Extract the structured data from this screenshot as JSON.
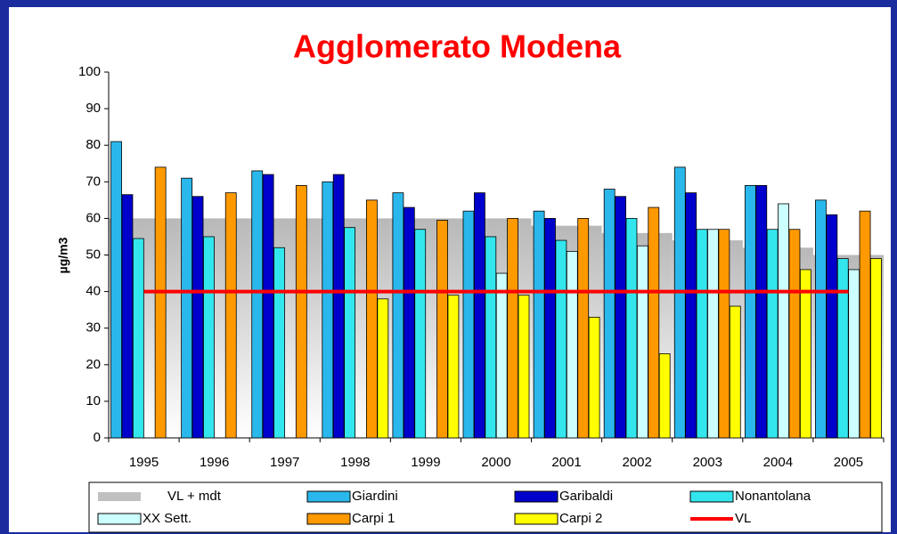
{
  "chart_data": {
    "type": "bar",
    "title": "Agglomerato Modena",
    "ylabel": "µg/m3",
    "categories": [
      "1995",
      "1996",
      "1997",
      "1998",
      "1999",
      "2000",
      "2001",
      "2002",
      "2003",
      "2004",
      "2005"
    ],
    "ylim": [
      0,
      100
    ],
    "yticks": [
      0,
      10,
      20,
      30,
      40,
      50,
      60,
      70,
      80,
      90,
      100
    ],
    "series": [
      {
        "name": "VL + mdt",
        "kind": "area",
        "color": "#c0c0c0",
        "values": [
          60,
          60,
          60,
          60,
          60,
          60,
          58,
          56,
          54,
          52,
          50
        ]
      },
      {
        "name": "Giardini",
        "color": "#2ab8ec",
        "values": [
          81,
          71,
          73,
          70,
          67,
          62,
          62,
          68,
          74,
          69,
          65
        ]
      },
      {
        "name": "Garibaldi",
        "color": "#0000cc",
        "values": [
          66.5,
          66,
          72,
          72,
          63,
          67,
          60,
          66,
          67,
          69,
          61
        ]
      },
      {
        "name": "Nonantolana",
        "color": "#33e6ee",
        "values": [
          54.5,
          55,
          52,
          57.5,
          57,
          55,
          54,
          60,
          57,
          57,
          49
        ]
      },
      {
        "name": "XX Sett.",
        "color": "#ccffff",
        "values": [
          null,
          null,
          null,
          null,
          null,
          45,
          51,
          52.5,
          57,
          64,
          46
        ]
      },
      {
        "name": "Carpi 1",
        "color": "#ff9900",
        "values": [
          74,
          67,
          69,
          65,
          59.5,
          60,
          60,
          63,
          57,
          57,
          62
        ]
      },
      {
        "name": "Carpi 2",
        "color": "#ffff00",
        "values": [
          null,
          null,
          null,
          38,
          39,
          39,
          33,
          23,
          36,
          46,
          49
        ]
      },
      {
        "name": "VL",
        "kind": "line",
        "color": "#ff0000",
        "values": [
          40,
          40,
          40,
          40,
          40,
          40,
          40,
          40,
          40,
          40,
          40
        ]
      }
    ]
  }
}
